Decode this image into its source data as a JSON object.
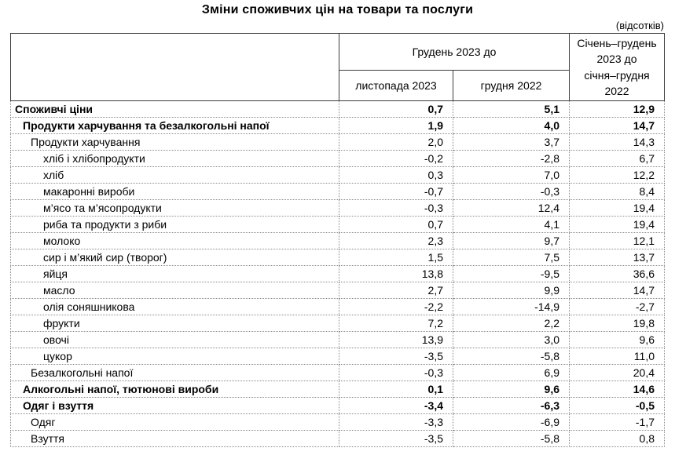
{
  "title": "Зміни споживчих цін на товари та послуги",
  "units_note": "(відсотків)",
  "table": {
    "header": {
      "group_col": "Грудень 2023 до",
      "sub_col_1": "листопада 2023",
      "sub_col_2": "грудня 2022",
      "period_col": "Січень–грудень\n2023 до\nсічня–грудня\n2022"
    },
    "rows": [
      {
        "label": "Споживчі ціни",
        "indent": 0,
        "bold": true,
        "values": [
          "0,7",
          "5,1",
          "12,9"
        ]
      },
      {
        "label": "Продукти харчування та безалкогольні напої",
        "indent": 1,
        "bold": true,
        "values": [
          "1,9",
          "4,0",
          "14,7"
        ]
      },
      {
        "label": "Продукти харчування",
        "indent": 2,
        "bold": false,
        "values": [
          "2,0",
          "3,7",
          "14,3"
        ]
      },
      {
        "label": "хліб і хлібопродукти",
        "indent": 3,
        "bold": false,
        "values": [
          "-0,2",
          "-2,8",
          "6,7"
        ]
      },
      {
        "label": "хліб",
        "indent": 3,
        "bold": false,
        "values": [
          "0,3",
          "7,0",
          "12,2"
        ]
      },
      {
        "label": "макаронні вироби",
        "indent": 3,
        "bold": false,
        "values": [
          "-0,7",
          "-0,3",
          "8,4"
        ]
      },
      {
        "label": "м’ясо та м’ясопродукти",
        "indent": 3,
        "bold": false,
        "values": [
          "-0,3",
          "12,4",
          "19,4"
        ]
      },
      {
        "label": "риба та продукти з риби",
        "indent": 3,
        "bold": false,
        "values": [
          "0,7",
          "4,1",
          "19,4"
        ]
      },
      {
        "label": "молоко",
        "indent": 3,
        "bold": false,
        "values": [
          "2,3",
          "9,7",
          "12,1"
        ]
      },
      {
        "label": "сир і м’який сир (творог)",
        "indent": 3,
        "bold": false,
        "values": [
          "1,5",
          "7,5",
          "13,7"
        ]
      },
      {
        "label": "яйця",
        "indent": 3,
        "bold": false,
        "values": [
          "13,8",
          "-9,5",
          "36,6"
        ]
      },
      {
        "label": "масло",
        "indent": 3,
        "bold": false,
        "values": [
          "2,7",
          "9,9",
          "14,7"
        ]
      },
      {
        "label": "олія соняшникова",
        "indent": 3,
        "bold": false,
        "values": [
          "-2,2",
          "-14,9",
          "-2,7"
        ]
      },
      {
        "label": "фрукти",
        "indent": 3,
        "bold": false,
        "values": [
          "7,2",
          "2,2",
          "19,8"
        ]
      },
      {
        "label": "овочі",
        "indent": 3,
        "bold": false,
        "values": [
          "13,9",
          "3,0",
          "9,6"
        ]
      },
      {
        "label": "цукор",
        "indent": 3,
        "bold": false,
        "values": [
          "-3,5",
          "-5,8",
          "11,0"
        ]
      },
      {
        "label": "Безалкогольні напої",
        "indent": 2,
        "bold": false,
        "values": [
          "-0,3",
          "6,9",
          "20,4"
        ]
      },
      {
        "label": "Алкогольні напої, тютюнові вироби",
        "indent": 1,
        "bold": true,
        "values": [
          "0,1",
          "9,6",
          "14,6"
        ]
      },
      {
        "label": "Одяг і взуття",
        "indent": 1,
        "bold": true,
        "values": [
          "-3,4",
          "-6,3",
          "-0,5"
        ]
      },
      {
        "label": "Одяг",
        "indent": 2,
        "bold": false,
        "values": [
          "-3,3",
          "-6,9",
          "-1,7"
        ]
      },
      {
        "label": "Взуття",
        "indent": 2,
        "bold": false,
        "values": [
          "-3,5",
          "-5,8",
          "0,8"
        ]
      }
    ]
  }
}
